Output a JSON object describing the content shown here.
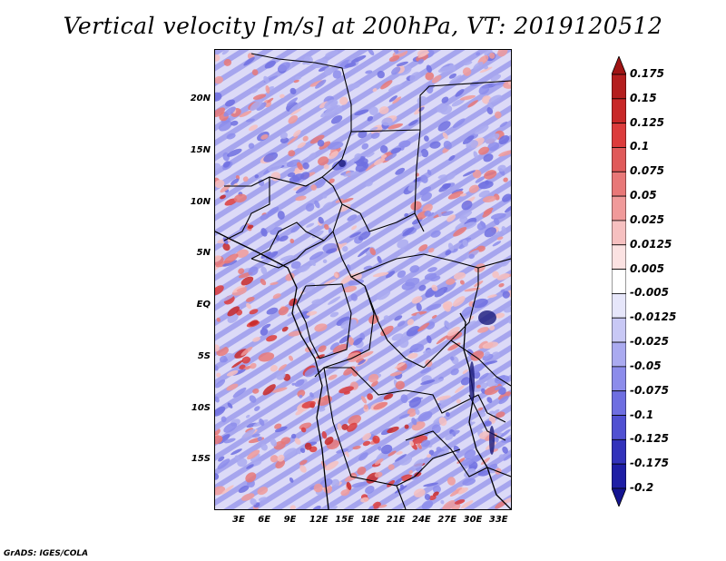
{
  "title": "Vertical velocity [m/s] at 200hPa, VT: 2019120512",
  "credit": "GrADS: IGES/COLA",
  "lat_axis": {
    "ticks": [
      {
        "value": 20,
        "label": "20N"
      },
      {
        "value": 15,
        "label": "15N"
      },
      {
        "value": 10,
        "label": "10N"
      },
      {
        "value": 5,
        "label": "5N"
      },
      {
        "value": 0,
        "label": "EQ"
      },
      {
        "value": -5,
        "label": "5S"
      },
      {
        "value": -10,
        "label": "10S"
      },
      {
        "value": -15,
        "label": "15S"
      }
    ]
  },
  "lon_axis": {
    "ticks": [
      {
        "value": 3,
        "label": "3E"
      },
      {
        "value": 6,
        "label": "6E"
      },
      {
        "value": 9,
        "label": "9E"
      },
      {
        "value": 12,
        "label": "12E"
      },
      {
        "value": 15,
        "label": "15E"
      },
      {
        "value": 18,
        "label": "18E"
      },
      {
        "value": 21,
        "label": "21E"
      },
      {
        "value": 24,
        "label": "24E"
      },
      {
        "value": 27,
        "label": "27E"
      },
      {
        "value": 30,
        "label": "30E"
      },
      {
        "value": 33,
        "label": "33E"
      }
    ]
  },
  "colorbar": {
    "levels": [
      "0.175",
      "0.15",
      "0.125",
      "0.1",
      "0.075",
      "0.05",
      "0.025",
      "0.0125",
      "0.005",
      "-0.005",
      "-0.0125",
      "-0.025",
      "-0.05",
      "-0.075",
      "-0.1",
      "-0.125",
      "-0.175",
      "-0.2"
    ],
    "colors": [
      "#a01414",
      "#b41e1e",
      "#c82828",
      "#dc3c3c",
      "#e05a5a",
      "#e87878",
      "#f09a9a",
      "#f6c0c0",
      "#fbe2e2",
      "#ffffff",
      "#e6e6fa",
      "#c8c8f5",
      "#aaaaf0",
      "#8c8ceb",
      "#6e6ee1",
      "#5050d2",
      "#3232bb",
      "#1e1ea5",
      "#141490"
    ]
  }
}
